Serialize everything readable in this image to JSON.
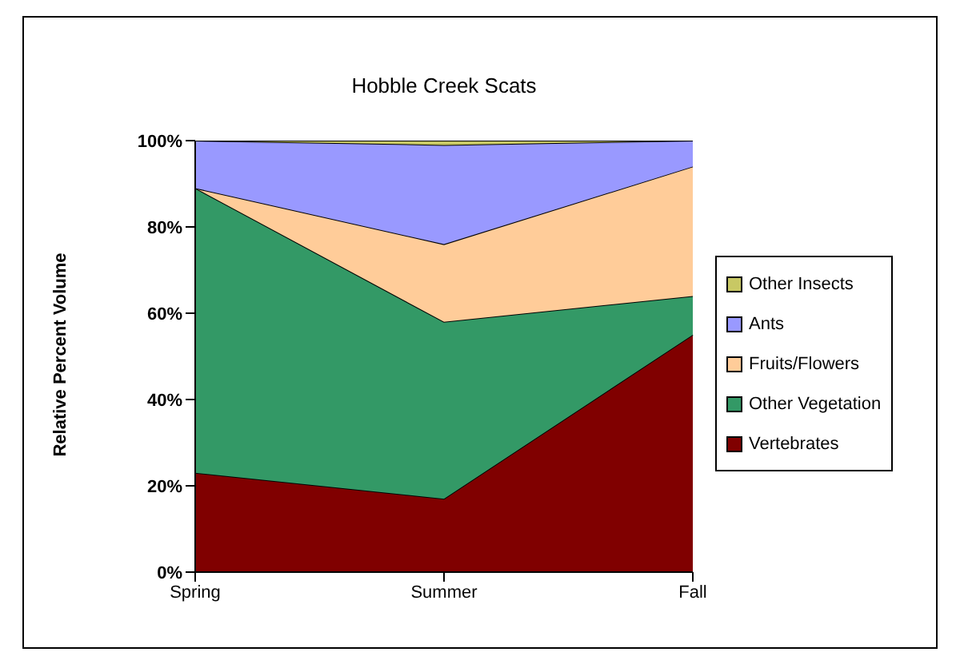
{
  "chart_data": {
    "type": "area",
    "title": "Hobble Creek Scats",
    "ylabel": "Relative Percent Volume",
    "categories": [
      "Spring",
      "Summer",
      "Fall"
    ],
    "stacked": true,
    "series": [
      {
        "name": "Vertebrates",
        "color": "#800000",
        "values": [
          23,
          17,
          55
        ]
      },
      {
        "name": "Other Vegetation",
        "color": "#339966",
        "values": [
          66,
          41,
          9
        ]
      },
      {
        "name": "Fruits/Flowers",
        "color": "#ffcc99",
        "values": [
          0,
          18,
          30
        ]
      },
      {
        "name": "Ants",
        "color": "#9999ff",
        "values": [
          11,
          23,
          6
        ]
      },
      {
        "name": "Other Insects",
        "color": "#c8c864",
        "values": [
          0,
          1,
          0
        ]
      }
    ],
    "ylim": [
      0,
      100
    ],
    "yticks": [
      {
        "value": 0,
        "label": "0%"
      },
      {
        "value": 20,
        "label": "20%"
      },
      {
        "value": 40,
        "label": "40%"
      },
      {
        "value": 60,
        "label": "60%"
      },
      {
        "value": 80,
        "label": "80%"
      },
      {
        "value": 100,
        "label": "100%"
      }
    ],
    "grid": false,
    "legend": "right"
  }
}
